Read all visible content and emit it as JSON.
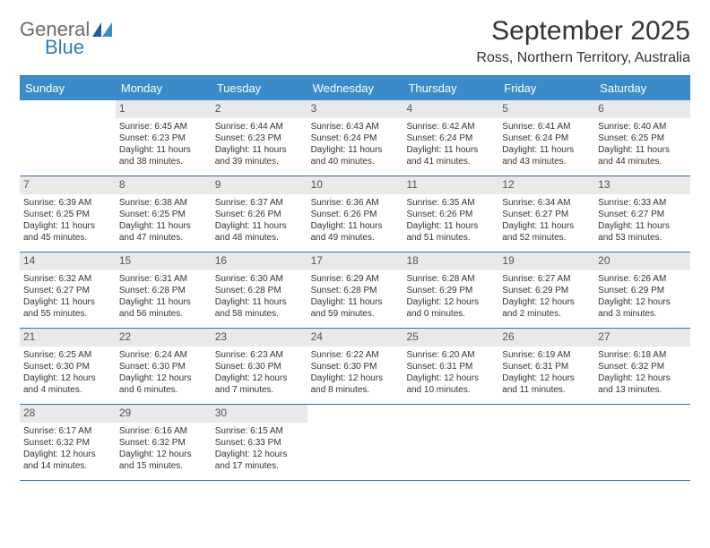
{
  "logo": {
    "line1": "General",
    "line2": "Blue"
  },
  "title": "September 2025",
  "location": "Ross, Northern Territory, Australia",
  "colors": {
    "header_bg": "#3b8bc9",
    "header_text": "#ffffff",
    "rule": "#2f6fa8",
    "daynum_bg": "#e9e9e9",
    "logo_gray": "#6b6b6b",
    "logo_blue": "#2f7bbf"
  },
  "day_names": [
    "Sunday",
    "Monday",
    "Tuesday",
    "Wednesday",
    "Thursday",
    "Friday",
    "Saturday"
  ],
  "weeks": [
    [
      {
        "day": "",
        "lines": []
      },
      {
        "day": "1",
        "lines": [
          "Sunrise: 6:45 AM",
          "Sunset: 6:23 PM",
          "Daylight: 11 hours",
          "and 38 minutes."
        ]
      },
      {
        "day": "2",
        "lines": [
          "Sunrise: 6:44 AM",
          "Sunset: 6:23 PM",
          "Daylight: 11 hours",
          "and 39 minutes."
        ]
      },
      {
        "day": "3",
        "lines": [
          "Sunrise: 6:43 AM",
          "Sunset: 6:24 PM",
          "Daylight: 11 hours",
          "and 40 minutes."
        ]
      },
      {
        "day": "4",
        "lines": [
          "Sunrise: 6:42 AM",
          "Sunset: 6:24 PM",
          "Daylight: 11 hours",
          "and 41 minutes."
        ]
      },
      {
        "day": "5",
        "lines": [
          "Sunrise: 6:41 AM",
          "Sunset: 6:24 PM",
          "Daylight: 11 hours",
          "and 43 minutes."
        ]
      },
      {
        "day": "6",
        "lines": [
          "Sunrise: 6:40 AM",
          "Sunset: 6:25 PM",
          "Daylight: 11 hours",
          "and 44 minutes."
        ]
      }
    ],
    [
      {
        "day": "7",
        "lines": [
          "Sunrise: 6:39 AM",
          "Sunset: 6:25 PM",
          "Daylight: 11 hours",
          "and 45 minutes."
        ]
      },
      {
        "day": "8",
        "lines": [
          "Sunrise: 6:38 AM",
          "Sunset: 6:25 PM",
          "Daylight: 11 hours",
          "and 47 minutes."
        ]
      },
      {
        "day": "9",
        "lines": [
          "Sunrise: 6:37 AM",
          "Sunset: 6:26 PM",
          "Daylight: 11 hours",
          "and 48 minutes."
        ]
      },
      {
        "day": "10",
        "lines": [
          "Sunrise: 6:36 AM",
          "Sunset: 6:26 PM",
          "Daylight: 11 hours",
          "and 49 minutes."
        ]
      },
      {
        "day": "11",
        "lines": [
          "Sunrise: 6:35 AM",
          "Sunset: 6:26 PM",
          "Daylight: 11 hours",
          "and 51 minutes."
        ]
      },
      {
        "day": "12",
        "lines": [
          "Sunrise: 6:34 AM",
          "Sunset: 6:27 PM",
          "Daylight: 11 hours",
          "and 52 minutes."
        ]
      },
      {
        "day": "13",
        "lines": [
          "Sunrise: 6:33 AM",
          "Sunset: 6:27 PM",
          "Daylight: 11 hours",
          "and 53 minutes."
        ]
      }
    ],
    [
      {
        "day": "14",
        "lines": [
          "Sunrise: 6:32 AM",
          "Sunset: 6:27 PM",
          "Daylight: 11 hours",
          "and 55 minutes."
        ]
      },
      {
        "day": "15",
        "lines": [
          "Sunrise: 6:31 AM",
          "Sunset: 6:28 PM",
          "Daylight: 11 hours",
          "and 56 minutes."
        ]
      },
      {
        "day": "16",
        "lines": [
          "Sunrise: 6:30 AM",
          "Sunset: 6:28 PM",
          "Daylight: 11 hours",
          "and 58 minutes."
        ]
      },
      {
        "day": "17",
        "lines": [
          "Sunrise: 6:29 AM",
          "Sunset: 6:28 PM",
          "Daylight: 11 hours",
          "and 59 minutes."
        ]
      },
      {
        "day": "18",
        "lines": [
          "Sunrise: 6:28 AM",
          "Sunset: 6:29 PM",
          "Daylight: 12 hours",
          "and 0 minutes."
        ]
      },
      {
        "day": "19",
        "lines": [
          "Sunrise: 6:27 AM",
          "Sunset: 6:29 PM",
          "Daylight: 12 hours",
          "and 2 minutes."
        ]
      },
      {
        "day": "20",
        "lines": [
          "Sunrise: 6:26 AM",
          "Sunset: 6:29 PM",
          "Daylight: 12 hours",
          "and 3 minutes."
        ]
      }
    ],
    [
      {
        "day": "21",
        "lines": [
          "Sunrise: 6:25 AM",
          "Sunset: 6:30 PM",
          "Daylight: 12 hours",
          "and 4 minutes."
        ]
      },
      {
        "day": "22",
        "lines": [
          "Sunrise: 6:24 AM",
          "Sunset: 6:30 PM",
          "Daylight: 12 hours",
          "and 6 minutes."
        ]
      },
      {
        "day": "23",
        "lines": [
          "Sunrise: 6:23 AM",
          "Sunset: 6:30 PM",
          "Daylight: 12 hours",
          "and 7 minutes."
        ]
      },
      {
        "day": "24",
        "lines": [
          "Sunrise: 6:22 AM",
          "Sunset: 6:30 PM",
          "Daylight: 12 hours",
          "and 8 minutes."
        ]
      },
      {
        "day": "25",
        "lines": [
          "Sunrise: 6:20 AM",
          "Sunset: 6:31 PM",
          "Daylight: 12 hours",
          "and 10 minutes."
        ]
      },
      {
        "day": "26",
        "lines": [
          "Sunrise: 6:19 AM",
          "Sunset: 6:31 PM",
          "Daylight: 12 hours",
          "and 11 minutes."
        ]
      },
      {
        "day": "27",
        "lines": [
          "Sunrise: 6:18 AM",
          "Sunset: 6:32 PM",
          "Daylight: 12 hours",
          "and 13 minutes."
        ]
      }
    ],
    [
      {
        "day": "28",
        "lines": [
          "Sunrise: 6:17 AM",
          "Sunset: 6:32 PM",
          "Daylight: 12 hours",
          "and 14 minutes."
        ]
      },
      {
        "day": "29",
        "lines": [
          "Sunrise: 6:16 AM",
          "Sunset: 6:32 PM",
          "Daylight: 12 hours",
          "and 15 minutes."
        ]
      },
      {
        "day": "30",
        "lines": [
          "Sunrise: 6:15 AM",
          "Sunset: 6:33 PM",
          "Daylight: 12 hours",
          "and 17 minutes."
        ]
      },
      {
        "day": "",
        "lines": []
      },
      {
        "day": "",
        "lines": []
      },
      {
        "day": "",
        "lines": []
      },
      {
        "day": "",
        "lines": []
      }
    ]
  ]
}
